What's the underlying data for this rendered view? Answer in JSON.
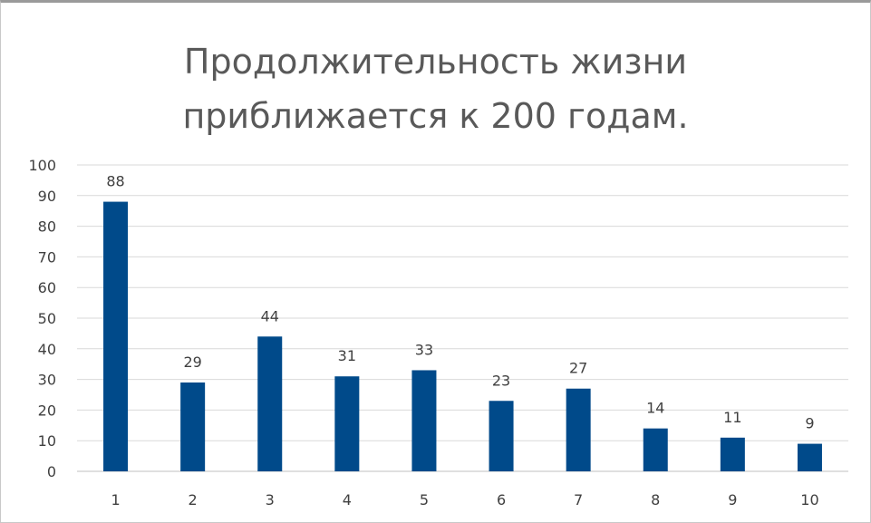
{
  "chart_data": {
    "type": "bar",
    "title_lines": [
      "Продолжительность жизни",
      "приближается к 200 годам."
    ],
    "categories": [
      "1",
      "2",
      "3",
      "4",
      "5",
      "6",
      "7",
      "8",
      "9",
      "10"
    ],
    "values": [
      88,
      29,
      44,
      31,
      33,
      23,
      27,
      14,
      11,
      9
    ],
    "data_labels": [
      "88",
      "29",
      "44",
      "31",
      "33",
      "23",
      "27",
      "14",
      "11",
      "9"
    ],
    "y_ticks": [
      0,
      10,
      20,
      30,
      40,
      50,
      60,
      70,
      80,
      90,
      100
    ],
    "ylim": [
      0,
      100
    ],
    "xlabel": "",
    "ylabel": "",
    "grid": true,
    "legend": "none",
    "bar_color": "#004A8A",
    "grid_color": "#D9D9D9",
    "axis_color": "#BFBFBF",
    "text_color": "#404040",
    "title_color": "#595959"
  }
}
